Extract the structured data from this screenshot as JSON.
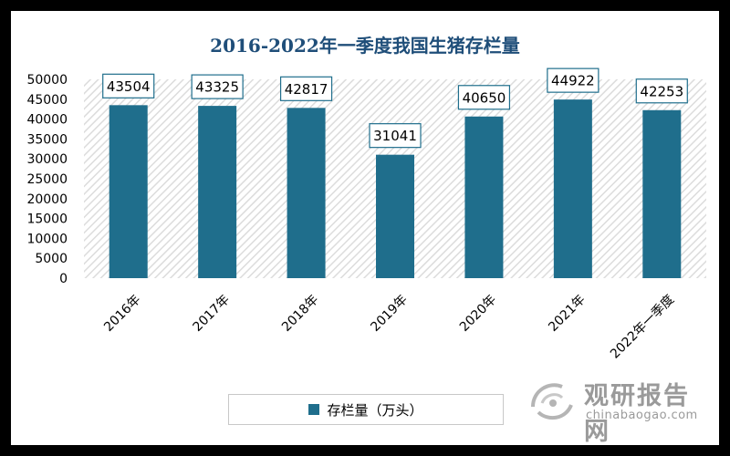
{
  "chart_data": {
    "type": "bar",
    "title": "2016-2022年一季度我国生猪存栏量",
    "categories": [
      "2016年",
      "2017年",
      "2018年",
      "2019年",
      "2020年",
      "2021年",
      "2022年一季度"
    ],
    "series": [
      {
        "name": "存栏量（万头）",
        "values": [
          43504,
          43325,
          42817,
          31041,
          40650,
          44922,
          42253
        ]
      }
    ],
    "yticks": [
      "0",
      "5000",
      "10000",
      "15000",
      "20000",
      "25000",
      "30000",
      "35000",
      "40000",
      "45000",
      "50000"
    ],
    "ylim": [
      0,
      50000
    ],
    "grid": false,
    "legend": "bottom",
    "bar_color": "#1f6e8c"
  },
  "watermark": {
    "name": "观研报告网",
    "url": "chinabaogao.com"
  }
}
